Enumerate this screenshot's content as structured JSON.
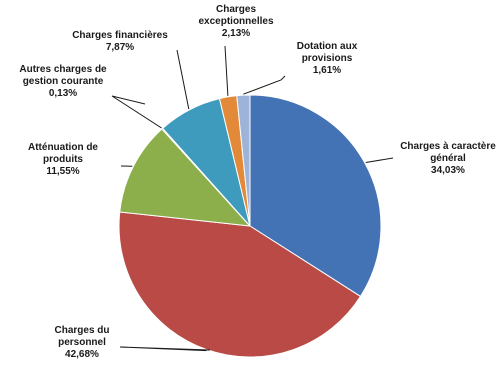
{
  "chart_data": {
    "type": "pie",
    "slices": [
      {
        "label": [
          "Charges à caractère",
          "général"
        ],
        "value_text": "34,03%",
        "value": 34.03,
        "color": "#4473b5"
      },
      {
        "label": [
          "Charges du",
          "personnel"
        ],
        "value_text": "42,68%",
        "value": 42.68,
        "color": "#b94a45"
      },
      {
        "label": [
          "Atténuation de",
          "produits"
        ],
        "value_text": "11,55%",
        "value": 11.55,
        "color": "#8caf4b"
      },
      {
        "label": [
          "Autres charges de",
          "gestion courante"
        ],
        "value_text": "0,13%",
        "value": 0.13,
        "color": "#6b4f8e"
      },
      {
        "label": [
          "Charges financières"
        ],
        "value_text": "7,87%",
        "value": 7.87,
        "color": "#3f9bbd"
      },
      {
        "label": [
          "Charges",
          "exceptionnelles"
        ],
        "value_text": "2,13%",
        "value": 2.13,
        "color": "#e38a3a"
      },
      {
        "label": [
          "Dotation aux",
          "provisions"
        ],
        "value_text": "1,61%",
        "value": 1.61,
        "color": "#9db4d8"
      }
    ]
  }
}
